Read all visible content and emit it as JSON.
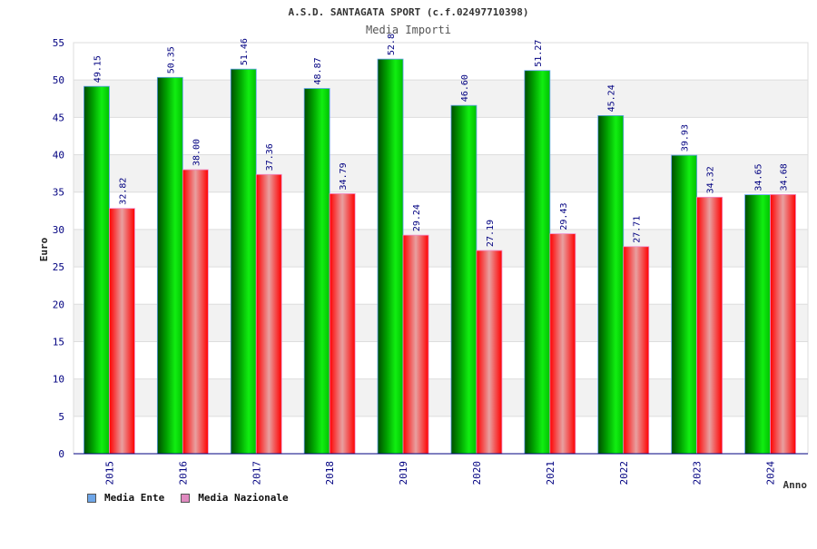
{
  "chart_data": {
    "type": "bar",
    "title": "A.S.D. SANTAGATA SPORT (c.f.02497710398)",
    "subtitle": "Media Importi",
    "xlabel": "Anno",
    "ylabel": "Euro",
    "ylim": [
      0,
      55
    ],
    "yticks": [
      "0",
      "5",
      "10",
      "15",
      "20",
      "25",
      "30",
      "35",
      "40",
      "45",
      "50",
      "55"
    ],
    "grid": true,
    "legend_position": "bottom-left",
    "categories": [
      "2015",
      "2016",
      "2017",
      "2018",
      "2019",
      "2020",
      "2021",
      "2022",
      "2023",
      "2024"
    ],
    "series": [
      {
        "name": "Media Ente",
        "color": "#00c800",
        "legend_color": "#6ea6e8",
        "values": [
          49.15,
          50.35,
          51.46,
          48.87,
          52.8,
          46.6,
          51.27,
          45.24,
          39.93,
          34.65
        ],
        "labels": [
          "49.15",
          "50.35",
          "51.46",
          "48.87",
          "52.8",
          "46.60",
          "51.27",
          "45.24",
          "39.93",
          "34.65"
        ]
      },
      {
        "name": "Media Nazionale",
        "color": "#ff1a1a",
        "legend_color": "#e08ac0",
        "values": [
          32.82,
          38.0,
          37.36,
          34.79,
          29.24,
          27.19,
          29.43,
          27.71,
          34.32,
          34.68
        ],
        "labels": [
          "32.82",
          "38.00",
          "37.36",
          "34.79",
          "29.24",
          "27.19",
          "29.43",
          "27.71",
          "34.32",
          "34.68"
        ]
      }
    ]
  }
}
